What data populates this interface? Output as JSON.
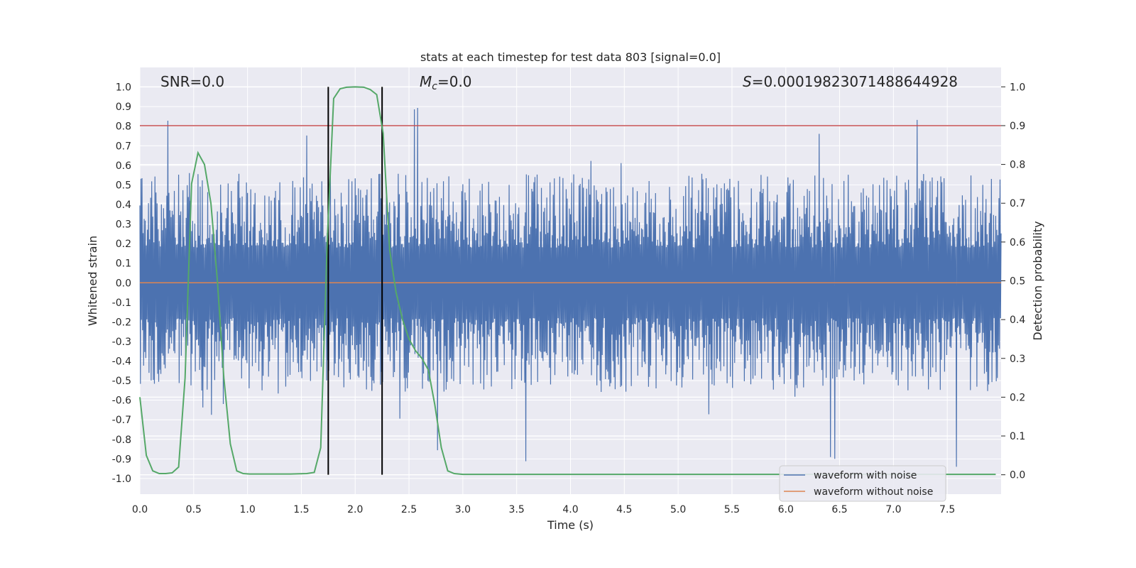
{
  "chart_data": {
    "type": "line",
    "title": "stats at each timestep for test data 803 [signal=0.0]",
    "xlabel": "Time (s)",
    "ylabel_left": "Whitened strain",
    "ylabel_right": "Detection probability",
    "xlim": [
      0.0,
      8.0
    ],
    "ylim_left": [
      -1.08,
      1.1
    ],
    "ylim_right": [
      -0.05,
      1.05
    ],
    "xticks": [
      "0.0",
      "0.5",
      "1.0",
      "1.5",
      "2.0",
      "2.5",
      "3.0",
      "3.5",
      "4.0",
      "4.5",
      "5.0",
      "5.5",
      "6.0",
      "6.5",
      "7.0",
      "7.5"
    ],
    "yticks_left": [
      "1.0",
      "0.9",
      "0.8",
      "0.7",
      "0.6",
      "0.5",
      "0.4",
      "0.3",
      "0.2",
      "0.1",
      "0.0",
      "-0.1",
      "-0.2",
      "-0.3",
      "-0.4",
      "-0.5",
      "-0.6",
      "-0.7",
      "-0.8",
      "-0.9",
      "-1.0"
    ],
    "yticks_right": [
      "1.0",
      "0.9",
      "0.8",
      "0.7",
      "0.6",
      "0.5",
      "0.4",
      "0.3",
      "0.2",
      "0.1",
      "0.0"
    ],
    "grid": true,
    "annotations": {
      "snr": "SNR=0.0",
      "mc_symbol": "M",
      "mc_sub": "c",
      "mc_value": "=0.0",
      "s_symbol": "S",
      "s_value": "=0.00019823071488644928"
    },
    "threshold_line": {
      "axis": "right",
      "value": 0.9,
      "color": "#c44e52"
    },
    "vertical_lines": {
      "x": [
        1.75,
        2.25
      ],
      "color": "#000000"
    },
    "series": [
      {
        "name": "waveform with noise",
        "axis": "left",
        "color": "#4c72b0",
        "envelope_peak_upper": 0.95,
        "envelope_peak_lower": -0.95,
        "typical_upper": 0.45,
        "typical_lower": -0.45
      },
      {
        "name": "waveform without noise",
        "axis": "left",
        "color": "#dd8452",
        "x": [
          0.0,
          8.0
        ],
        "y": [
          0.0,
          0.0
        ]
      },
      {
        "name": "detection probability",
        "axis": "right",
        "color": "#55a868",
        "x": [
          0.0,
          0.06,
          0.12,
          0.18,
          0.24,
          0.3,
          0.36,
          0.42,
          0.48,
          0.54,
          0.6,
          0.66,
          0.72,
          0.78,
          0.84,
          0.9,
          0.96,
          1.02,
          1.2,
          1.4,
          1.55,
          1.62,
          1.68,
          1.74,
          1.8,
          1.86,
          1.92,
          2.0,
          2.08,
          2.14,
          2.2,
          2.26,
          2.32,
          2.38,
          2.44,
          2.5,
          2.56,
          2.62,
          2.68,
          2.74,
          2.8,
          2.86,
          2.92,
          3.0,
          4.0,
          5.0,
          6.0,
          7.0,
          7.95
        ],
        "y": [
          0.2,
          0.05,
          0.01,
          0.003,
          0.003,
          0.005,
          0.02,
          0.25,
          0.75,
          0.83,
          0.8,
          0.7,
          0.5,
          0.25,
          0.08,
          0.01,
          0.003,
          0.002,
          0.002,
          0.002,
          0.003,
          0.006,
          0.07,
          0.6,
          0.97,
          0.995,
          0.999,
          1.0,
          0.999,
          0.993,
          0.98,
          0.88,
          0.58,
          0.47,
          0.4,
          0.35,
          0.32,
          0.3,
          0.27,
          0.18,
          0.07,
          0.01,
          0.003,
          0.001,
          0.001,
          0.001,
          0.001,
          0.001,
          0.001
        ]
      }
    ],
    "legend": {
      "placement": "lower-right",
      "entries": [
        "waveform with noise",
        "waveform without noise"
      ]
    }
  }
}
